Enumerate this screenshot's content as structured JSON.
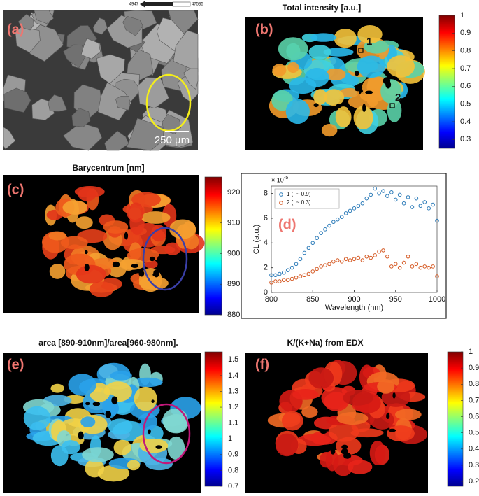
{
  "panels": [
    {
      "label": "(a)",
      "scale_bar_text": "250 µm",
      "scale_legend": [
        4947,
        47535
      ]
    },
    {
      "label": "(b)",
      "title": "Total intensity [a.u.]",
      "markers": [
        "1",
        "2"
      ],
      "colorbar": {
        "lim": [
          0.25,
          1
        ],
        "ticks": [
          0.3,
          0.4,
          0.5,
          0.6,
          0.7,
          0.8,
          0.9,
          1
        ]
      }
    },
    {
      "label": "(c)",
      "title": "Barycentrum [nm]",
      "colorbar": {
        "lim": [
          880,
          925
        ],
        "ticks": [
          880,
          890,
          900,
          910,
          920
        ]
      }
    },
    {
      "label": "(e)",
      "title": "area [890-910nm]/area[960-980nm].",
      "colorbar": {
        "lim": [
          0.7,
          1.55
        ],
        "ticks": [
          0.7,
          0.8,
          0.9,
          1,
          1.1,
          1.2,
          1.3,
          1.4,
          1.5
        ]
      }
    },
    {
      "label": "(f)",
      "title": "K/(K+Na) from EDX",
      "colorbar": {
        "lim": [
          0.17,
          1
        ],
        "ticks": [
          0.2,
          0.3,
          0.4,
          0.5,
          0.6,
          0.7,
          0.8,
          0.9,
          1
        ]
      }
    }
  ],
  "chart_data": {
    "type": "scatter",
    "label": "(d)",
    "x_label": "Wavelength (nm)",
    "y_label": "CL (a.u.)",
    "y_multiplier": "× 10",
    "y_multiplier_exponent": "-5",
    "xlim": [
      800,
      1000
    ],
    "xticks": [
      800,
      850,
      900,
      950,
      1000
    ],
    "ylim": [
      0,
      8.6
    ],
    "yticks": [
      0,
      2,
      4,
      6,
      8
    ],
    "legend": "upper left",
    "x": [
      800,
      805,
      810,
      815,
      820,
      825,
      830,
      835,
      840,
      845,
      850,
      855,
      860,
      865,
      870,
      875,
      880,
      885,
      890,
      895,
      900,
      905,
      910,
      915,
      920,
      925,
      930,
      935,
      940,
      945,
      950,
      955,
      960,
      965,
      970,
      975,
      980,
      985,
      990,
      995,
      1000
    ],
    "series": [
      {
        "name": "1 (I ~ 0.9)",
        "color": "#2a7ab8",
        "values": [
          1.4,
          1.4,
          1.5,
          1.6,
          1.8,
          2.0,
          2.3,
          2.7,
          3.2,
          3.6,
          4.0,
          4.4,
          4.8,
          5.1,
          5.4,
          5.7,
          5.9,
          6.1,
          6.4,
          6.6,
          6.8,
          7.0,
          7.2,
          7.6,
          7.9,
          8.4,
          8.0,
          8.2,
          7.8,
          8.1,
          7.5,
          7.9,
          7.2,
          7.7,
          6.9,
          7.6,
          7.0,
          7.3,
          6.8,
          7.1,
          5.8
        ]
      },
      {
        "name": "2 (I ~ 0.3)",
        "color": "#d4561f",
        "values": [
          0.8,
          0.9,
          0.9,
          1.0,
          1.0,
          1.1,
          1.2,
          1.3,
          1.4,
          1.5,
          1.7,
          1.9,
          2.1,
          2.2,
          2.3,
          2.5,
          2.6,
          2.5,
          2.7,
          2.6,
          2.7,
          2.8,
          2.6,
          2.9,
          2.8,
          3.0,
          3.3,
          3.4,
          2.9,
          2.1,
          2.3,
          2.0,
          2.4,
          2.9,
          2.1,
          2.3,
          2.0,
          2.1,
          2.0,
          2.1,
          1.3
        ]
      }
    ]
  }
}
